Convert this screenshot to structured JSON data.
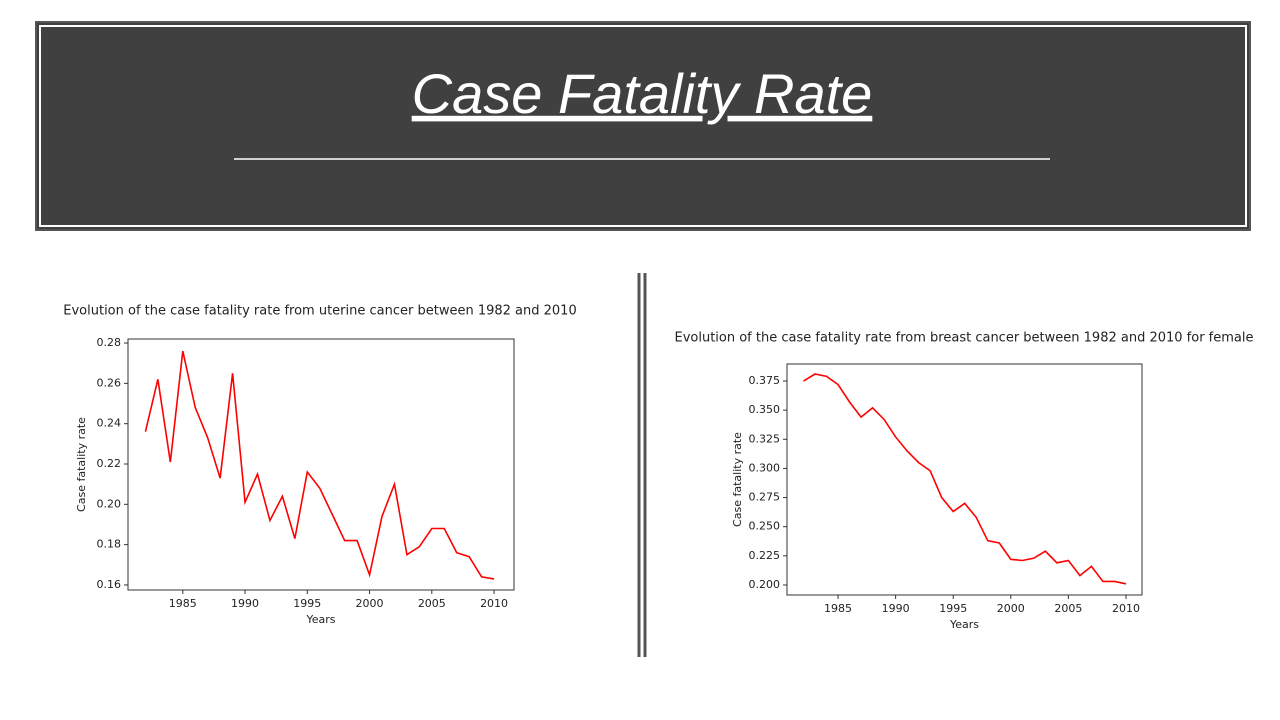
{
  "header": {
    "title": "Case Fatality Rate"
  },
  "chart_data": [
    {
      "type": "line",
      "title": "Evolution of the case fatality rate from uterine cancer between 1982 and 2010",
      "x_label": "Years",
      "y_label": "Case fatality rate",
      "x": [
        1982,
        1983,
        1984,
        1985,
        1986,
        1987,
        1988,
        1989,
        1990,
        1991,
        1992,
        1993,
        1994,
        1995,
        1996,
        1997,
        1998,
        1999,
        2000,
        2001,
        2002,
        2003,
        2004,
        2005,
        2006,
        2007,
        2008,
        2009,
        2010
      ],
      "values": [
        0.236,
        0.262,
        0.221,
        0.276,
        0.248,
        0.233,
        0.213,
        0.265,
        0.201,
        0.215,
        0.192,
        0.204,
        0.183,
        0.216,
        0.208,
        0.195,
        0.182,
        0.182,
        0.165,
        0.194,
        0.21,
        0.175,
        0.179,
        0.188,
        0.188,
        0.176,
        0.174,
        0.164,
        0.163
      ],
      "color": "#ff0000",
      "xlim": [
        1980.6,
        2011.6
      ],
      "xticks": [
        1985,
        1990,
        1995,
        2000,
        2005,
        2010
      ],
      "ylim": [
        0.1575,
        0.282
      ],
      "yticks": [
        0.16,
        0.18,
        {
          "value": 0.2,
          "label": "0.20"
        },
        0.22,
        0.24,
        0.26,
        0.28
      ]
    },
    {
      "type": "line",
      "title": "Evolution of the case fatality rate from breast cancer between 1982 and 2010 for female",
      "x_label": "Years",
      "y_label": "Case fatality rate",
      "x": [
        1982,
        1983,
        1984,
        1985,
        1986,
        1987,
        1988,
        1989,
        1990,
        1991,
        1992,
        1993,
        1994,
        1995,
        1996,
        1997,
        1998,
        1999,
        2000,
        2001,
        2002,
        2003,
        2004,
        2005,
        2006,
        2007,
        2008,
        2009,
        2010
      ],
      "values": [
        0.375,
        0.381,
        0.379,
        0.372,
        0.357,
        0.344,
        0.352,
        0.342,
        0.327,
        0.315,
        0.305,
        0.298,
        0.275,
        0.263,
        0.27,
        0.258,
        0.238,
        0.236,
        0.222,
        0.221,
        0.223,
        0.229,
        0.219,
        0.221,
        0.208,
        0.216,
        0.203,
        0.203,
        0.201
      ],
      "color": "#ff0000",
      "xlim": [
        1980.57,
        2011.39
      ],
      "xticks": [
        1985,
        1990,
        1995,
        2000,
        2005,
        2010
      ],
      "ylim": [
        0.1914,
        0.3896
      ],
      "yticks": [
        {
          "value": 0.2,
          "label": "0.200"
        },
        0.225,
        {
          "value": 0.25,
          "label": "0.250"
        },
        0.275,
        {
          "value": 0.3,
          "label": "0.300"
        },
        0.325,
        {
          "value": 0.35,
          "label": "0.350"
        },
        0.375
      ]
    }
  ]
}
